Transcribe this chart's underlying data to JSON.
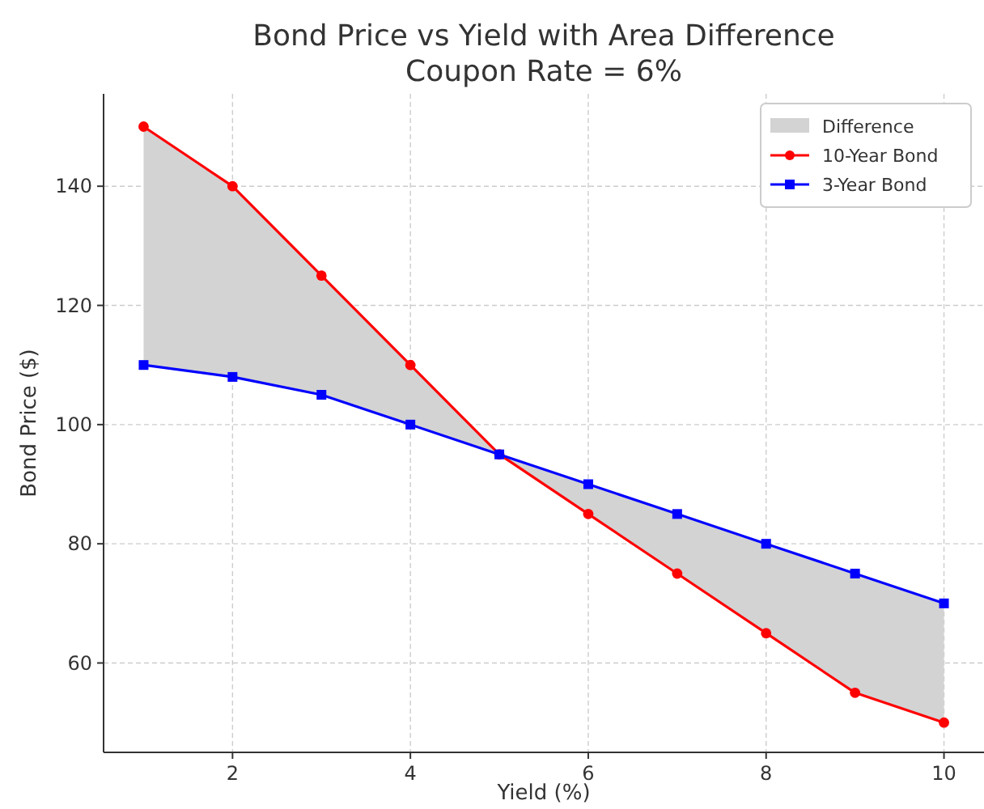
{
  "chart_data": {
    "type": "line",
    "title": "Bond Price vs Yield with Area Difference",
    "subtitle": "Coupon Rate = 6%",
    "xlabel": "Yield (%)",
    "ylabel": "Bond Price ($)",
    "x": [
      1,
      2,
      3,
      4,
      5,
      6,
      7,
      8,
      9,
      10
    ],
    "series": [
      {
        "name": "Difference",
        "type": "area",
        "color": "#d3d3d3",
        "values": [
          null,
          null,
          null,
          null,
          null,
          null,
          null,
          null,
          null,
          null
        ],
        "lower": [
          110,
          108,
          105,
          100,
          95,
          90,
          85,
          80,
          75,
          70
        ],
        "upper": [
          150,
          140,
          125,
          110,
          95,
          85,
          75,
          65,
          55,
          50
        ]
      },
      {
        "name": "10-Year Bond",
        "color": "#ff0000",
        "marker": "circle",
        "values": [
          150,
          140,
          125,
          110,
          95,
          85,
          75,
          65,
          55,
          50
        ]
      },
      {
        "name": "3-Year Bond",
        "color": "#0000ff",
        "marker": "square",
        "values": [
          110,
          108,
          105,
          100,
          95,
          90,
          85,
          80,
          75,
          70
        ]
      }
    ],
    "xlim": [
      0.55,
      10.45
    ],
    "ylim": [
      45,
      155.5
    ],
    "xticks": [
      2,
      4,
      6,
      8,
      10
    ],
    "yticks": [
      60,
      80,
      100,
      120,
      140
    ],
    "grid": true,
    "legend": "top right",
    "line_style": "solid"
  }
}
